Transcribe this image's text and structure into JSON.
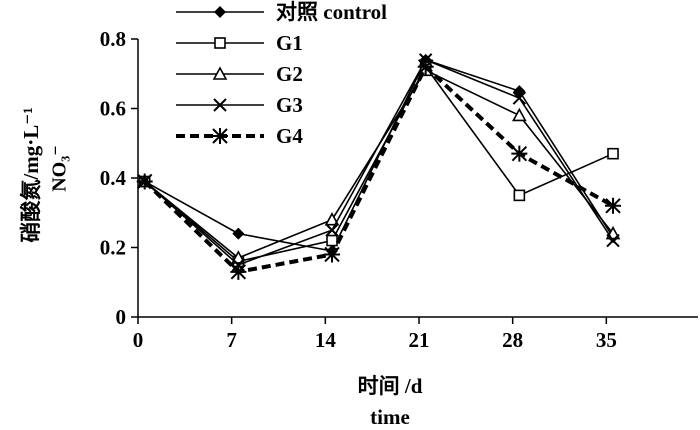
{
  "chart_data": {
    "type": "line",
    "ylabel_cn": "硝酸氮/mg·L⁻¹",
    "ylabel_chem": "NO₃⁻",
    "xlabel_cn": "时间 /d",
    "xlabel_en": "time",
    "xlim": [
      0,
      42
    ],
    "ylim": [
      0,
      0.8
    ],
    "xticks": [
      0,
      7,
      14,
      21,
      28,
      35
    ],
    "yticks": [
      0,
      0.2,
      0.4,
      0.6,
      0.8
    ],
    "ytick_labels": [
      "0",
      "0.2",
      "0.4",
      "0.6",
      "0.8"
    ],
    "legend_position": "top-left",
    "series": [
      {
        "name": "对照 control",
        "marker": "diamond",
        "dashed": false,
        "x": [
          0.5,
          7.5,
          14.5,
          21.5,
          28.5,
          35.5
        ],
        "y": [
          0.39,
          0.24,
          0.19,
          0.74,
          0.65,
          0.23
        ]
      },
      {
        "name": "G1",
        "marker": "square",
        "dashed": false,
        "x": [
          0.5,
          7.5,
          14.5,
          21.5,
          28.5,
          35.5
        ],
        "y": [
          0.39,
          0.16,
          0.22,
          0.72,
          0.35,
          0.47
        ]
      },
      {
        "name": "G2",
        "marker": "triangle",
        "dashed": false,
        "x": [
          0.5,
          7.5,
          14.5,
          21.5,
          28.5,
          35.5
        ],
        "y": [
          0.39,
          0.17,
          0.28,
          0.71,
          0.58,
          0.24
        ]
      },
      {
        "name": "G3",
        "marker": "x",
        "dashed": false,
        "x": [
          0.5,
          7.5,
          14.5,
          21.5,
          28.5,
          35.5
        ],
        "y": [
          0.39,
          0.15,
          0.25,
          0.74,
          0.63,
          0.22
        ]
      },
      {
        "name": "G4",
        "marker": "star",
        "dashed": true,
        "x": [
          0.5,
          7.5,
          14.5,
          21.5,
          28.5,
          35.5
        ],
        "y": [
          0.39,
          0.13,
          0.18,
          0.72,
          0.47,
          0.32
        ]
      }
    ]
  }
}
